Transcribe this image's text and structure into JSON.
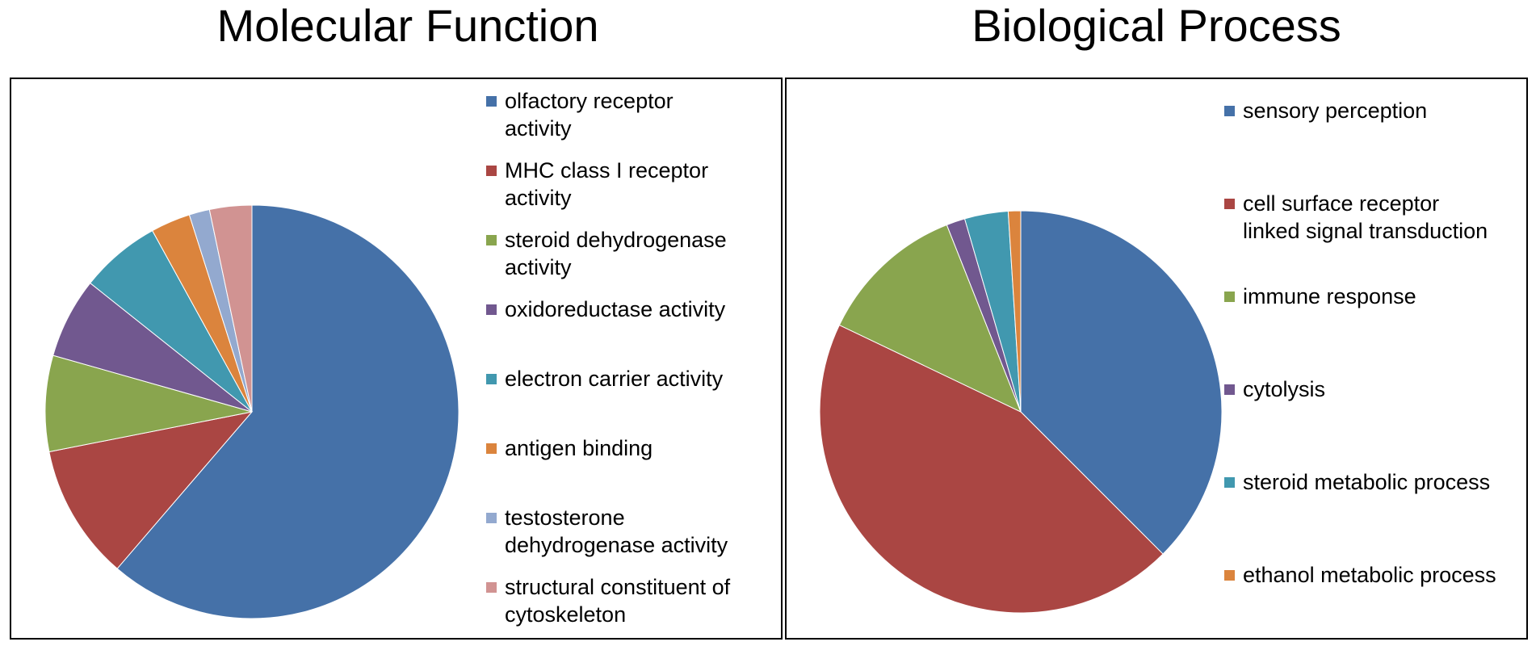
{
  "chart_data": [
    {
      "type": "pie",
      "title": "Molecular Function",
      "legend_position": "right",
      "categories": [
        "olfactory receptor activity",
        "MHC class I receptor activity",
        "steroid dehydrogenase activity",
        "oxidoreductase activity",
        "electron carrier activity",
        "antigen binding",
        "testosterone dehydrogenase activity",
        "structural constituent of cytoskeleton"
      ],
      "legend_lines": [
        [
          "olfactory receptor",
          "activity"
        ],
        [
          "MHC class I receptor",
          "activity"
        ],
        [
          "steroid dehydrogenase",
          "activity"
        ],
        [
          "oxidoreductase activity"
        ],
        [
          "electron carrier activity"
        ],
        [
          "antigen binding"
        ],
        [
          "testosterone",
          "dehydrogenase activity"
        ],
        [
          "structural constituent of",
          "cytoskeleton"
        ]
      ],
      "values": [
        61.3,
        10.6,
        7.5,
        6.3,
        6.3,
        3.1,
        1.6,
        3.3
      ],
      "colors": [
        "#4571A8",
        "#AA4643",
        "#89A54E",
        "#71588F",
        "#4198AF",
        "#DB843D",
        "#93A9CF",
        "#D19392"
      ]
    },
    {
      "type": "pie",
      "title": "Biological Process",
      "legend_position": "right",
      "categories": [
        "sensory perception",
        "cell surface receptor linked signal transduction",
        "immune response",
        "cytolysis",
        "steroid metabolic process",
        "ethanol metabolic process"
      ],
      "legend_lines": [
        [
          "sensory perception"
        ],
        [
          "cell surface receptor",
          "linked signal transduction"
        ],
        [
          "immune response"
        ],
        [
          "cytolysis"
        ],
        [
          "steroid metabolic process"
        ],
        [
          "ethanol metabolic process"
        ]
      ],
      "values": [
        37.5,
        44.6,
        11.9,
        1.5,
        3.5,
        1.0
      ],
      "colors": [
        "#4571A8",
        "#AA4643",
        "#89A54E",
        "#71588F",
        "#4198AF",
        "#DB843D"
      ]
    }
  ]
}
